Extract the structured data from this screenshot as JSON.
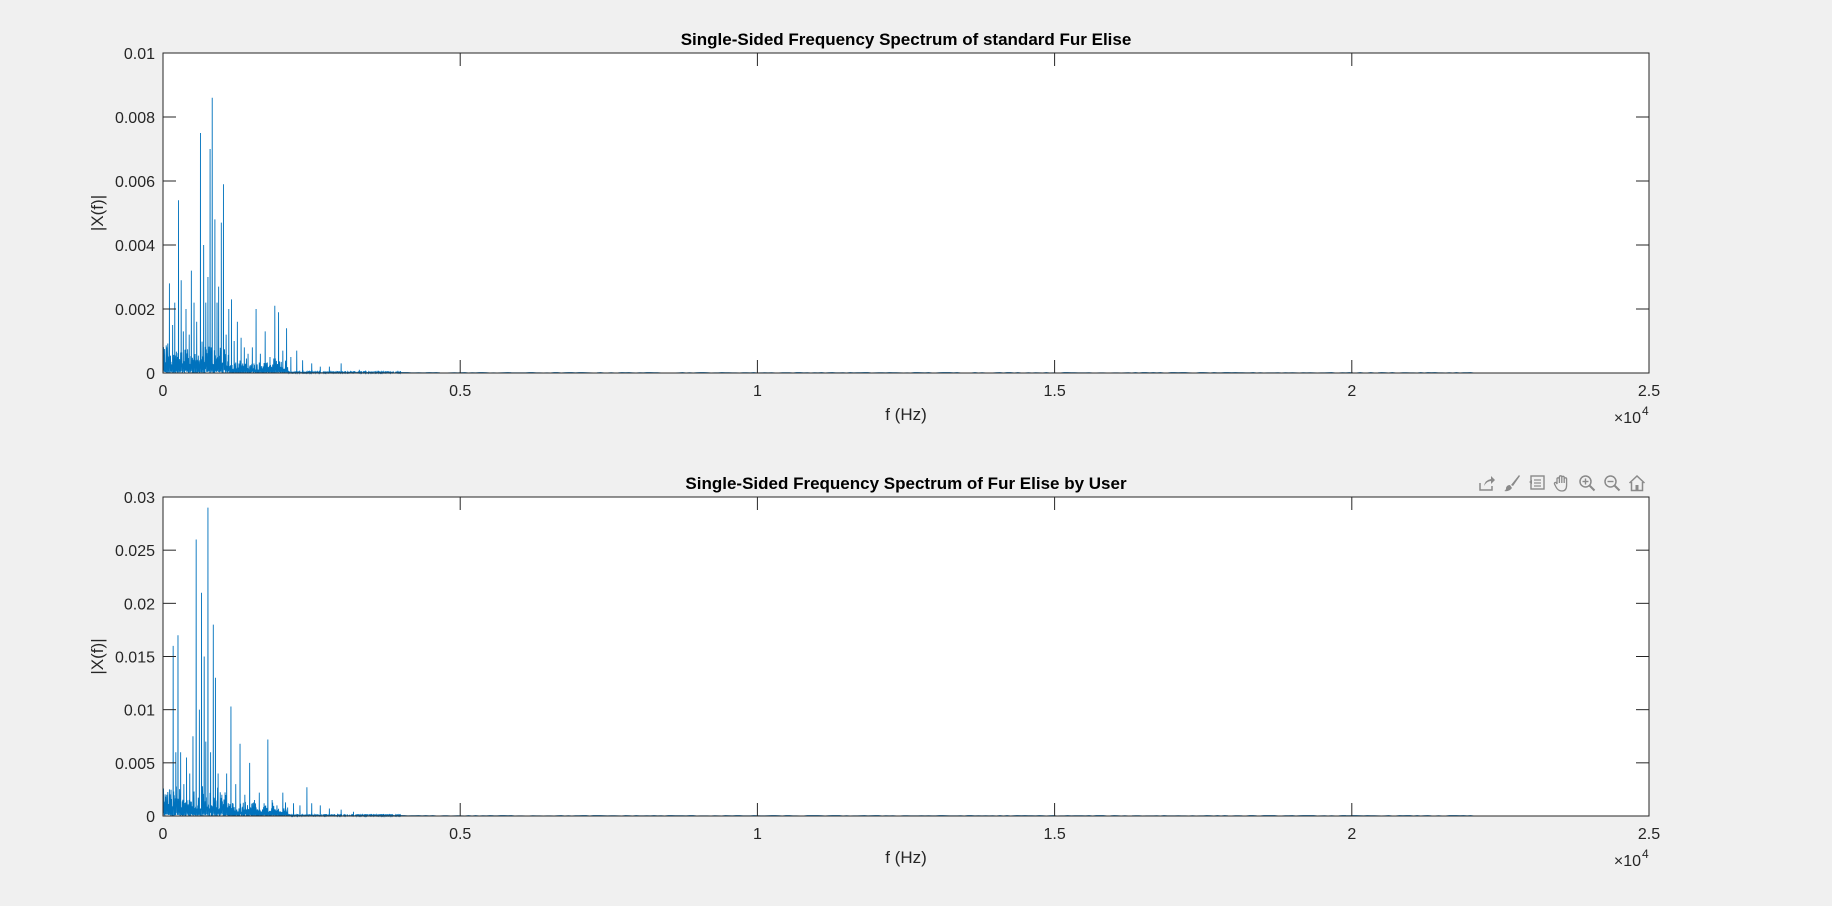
{
  "figure": {
    "background": "#f0f0f0",
    "axes_background": "#ffffff",
    "line_color": "#0072bd"
  },
  "toolbar": {
    "icons": [
      "export-icon",
      "brush-icon",
      "datatip-icon",
      "pan-icon",
      "zoom-in-icon",
      "zoom-out-icon",
      "home-icon"
    ]
  },
  "chart_data": [
    {
      "type": "line",
      "title": "Single-Sided Frequency Spectrum of standard Fur Elise",
      "xlabel": "f (Hz)",
      "ylabel": "|X(f)|",
      "xlim": [
        0,
        25000
      ],
      "ylim": [
        0,
        0.01
      ],
      "xticks": [
        0,
        5000,
        10000,
        15000,
        20000,
        25000
      ],
      "xtick_labels": [
        "0",
        "0.5",
        "1",
        "1.5",
        "2",
        "2.5"
      ],
      "x_exponent_label": "×10",
      "x_exponent_power": "4",
      "yticks": [
        0,
        0.002,
        0.004,
        0.006,
        0.008,
        0.01
      ],
      "ytick_labels": [
        "0",
        "0.002",
        "0.004",
        "0.006",
        "0.008",
        "0.01"
      ],
      "grid": false,
      "x_data_end": 22050,
      "peaks": [
        {
          "x": 60,
          "y": 0.0008
        },
        {
          "x": 110,
          "y": 0.0028
        },
        {
          "x": 165,
          "y": 0.0015
        },
        {
          "x": 200,
          "y": 0.0022
        },
        {
          "x": 260,
          "y": 0.0054
        },
        {
          "x": 310,
          "y": 0.0029
        },
        {
          "x": 345,
          "y": 0.0013
        },
        {
          "x": 390,
          "y": 0.002
        },
        {
          "x": 440,
          "y": 0.0012
        },
        {
          "x": 480,
          "y": 0.0032
        },
        {
          "x": 520,
          "y": 0.0022
        },
        {
          "x": 570,
          "y": 0.0016
        },
        {
          "x": 630,
          "y": 0.0075
        },
        {
          "x": 680,
          "y": 0.004
        },
        {
          "x": 720,
          "y": 0.0022
        },
        {
          "x": 760,
          "y": 0.003
        },
        {
          "x": 790,
          "y": 0.007
        },
        {
          "x": 830,
          "y": 0.0086
        },
        {
          "x": 870,
          "y": 0.0048
        },
        {
          "x": 910,
          "y": 0.0022
        },
        {
          "x": 940,
          "y": 0.0027
        },
        {
          "x": 980,
          "y": 0.0047
        },
        {
          "x": 1020,
          "y": 0.0059
        },
        {
          "x": 1060,
          "y": 0.0012
        },
        {
          "x": 1110,
          "y": 0.002
        },
        {
          "x": 1150,
          "y": 0.0023
        },
        {
          "x": 1200,
          "y": 0.001
        },
        {
          "x": 1250,
          "y": 0.0016
        },
        {
          "x": 1310,
          "y": 0.0011
        },
        {
          "x": 1370,
          "y": 0.0008
        },
        {
          "x": 1430,
          "y": 0.0006
        },
        {
          "x": 1500,
          "y": 0.0008
        },
        {
          "x": 1570,
          "y": 0.002
        },
        {
          "x": 1640,
          "y": 0.0006
        },
        {
          "x": 1720,
          "y": 0.0013
        },
        {
          "x": 1800,
          "y": 0.0005
        },
        {
          "x": 1880,
          "y": 0.0021
        },
        {
          "x": 1940,
          "y": 0.0019
        },
        {
          "x": 2020,
          "y": 0.0007
        },
        {
          "x": 2080,
          "y": 0.0014
        },
        {
          "x": 2150,
          "y": 0.0005
        },
        {
          "x": 2250,
          "y": 0.0007
        },
        {
          "x": 2350,
          "y": 0.0004
        },
        {
          "x": 2500,
          "y": 0.0003
        },
        {
          "x": 2650,
          "y": 0.0002
        },
        {
          "x": 2800,
          "y": 0.0002
        },
        {
          "x": 3000,
          "y": 0.0003
        },
        {
          "x": 3300,
          "y": 0.0001
        }
      ]
    },
    {
      "type": "line",
      "title": "Single-Sided Frequency Spectrum of Fur Elise by User",
      "xlabel": "f (Hz)",
      "ylabel": "|X(f)|",
      "xlim": [
        0,
        25000
      ],
      "ylim": [
        0,
        0.03
      ],
      "xticks": [
        0,
        5000,
        10000,
        15000,
        20000,
        25000
      ],
      "xtick_labels": [
        "0",
        "0.5",
        "1",
        "1.5",
        "2",
        "2.5"
      ],
      "x_exponent_label": "×10",
      "x_exponent_power": "4",
      "yticks": [
        0,
        0.005,
        0.01,
        0.015,
        0.02,
        0.025,
        0.03
      ],
      "ytick_labels": [
        "0",
        "0.005",
        "0.01",
        "0.015",
        "0.02",
        "0.025",
        "0.03"
      ],
      "grid": false,
      "x_data_end": 22050,
      "peaks": [
        {
          "x": 60,
          "y": 0.002
        },
        {
          "x": 110,
          "y": 0.0025
        },
        {
          "x": 170,
          "y": 0.016
        },
        {
          "x": 215,
          "y": 0.006
        },
        {
          "x": 250,
          "y": 0.017
        },
        {
          "x": 300,
          "y": 0.006
        },
        {
          "x": 350,
          "y": 0.003
        },
        {
          "x": 400,
          "y": 0.0055
        },
        {
          "x": 450,
          "y": 0.004
        },
        {
          "x": 500,
          "y": 0.0075
        },
        {
          "x": 560,
          "y": 0.026
        },
        {
          "x": 610,
          "y": 0.01
        },
        {
          "x": 650,
          "y": 0.021
        },
        {
          "x": 690,
          "y": 0.015
        },
        {
          "x": 720,
          "y": 0.007
        },
        {
          "x": 755,
          "y": 0.029
        },
        {
          "x": 800,
          "y": 0.006
        },
        {
          "x": 850,
          "y": 0.018
        },
        {
          "x": 880,
          "y": 0.013
        },
        {
          "x": 930,
          "y": 0.004
        },
        {
          "x": 990,
          "y": 0.002
        },
        {
          "x": 1070,
          "y": 0.004
        },
        {
          "x": 1140,
          "y": 0.0103
        },
        {
          "x": 1220,
          "y": 0.003
        },
        {
          "x": 1300,
          "y": 0.0068
        },
        {
          "x": 1380,
          "y": 0.002
        },
        {
          "x": 1460,
          "y": 0.005
        },
        {
          "x": 1540,
          "y": 0.0015
        },
        {
          "x": 1620,
          "y": 0.0022
        },
        {
          "x": 1700,
          "y": 0.0012
        },
        {
          "x": 1760,
          "y": 0.0072
        },
        {
          "x": 1840,
          "y": 0.0015
        },
        {
          "x": 1920,
          "y": 0.001
        },
        {
          "x": 2020,
          "y": 0.0022
        },
        {
          "x": 2100,
          "y": 0.0008
        },
        {
          "x": 2200,
          "y": 0.0012
        },
        {
          "x": 2300,
          "y": 0.001
        },
        {
          "x": 2420,
          "y": 0.0027
        },
        {
          "x": 2500,
          "y": 0.0012
        },
        {
          "x": 2650,
          "y": 0.001
        },
        {
          "x": 2800,
          "y": 0.0007
        },
        {
          "x": 3000,
          "y": 0.0006
        },
        {
          "x": 3200,
          "y": 0.0004
        },
        {
          "x": 3500,
          "y": 0.0002
        }
      ]
    }
  ]
}
